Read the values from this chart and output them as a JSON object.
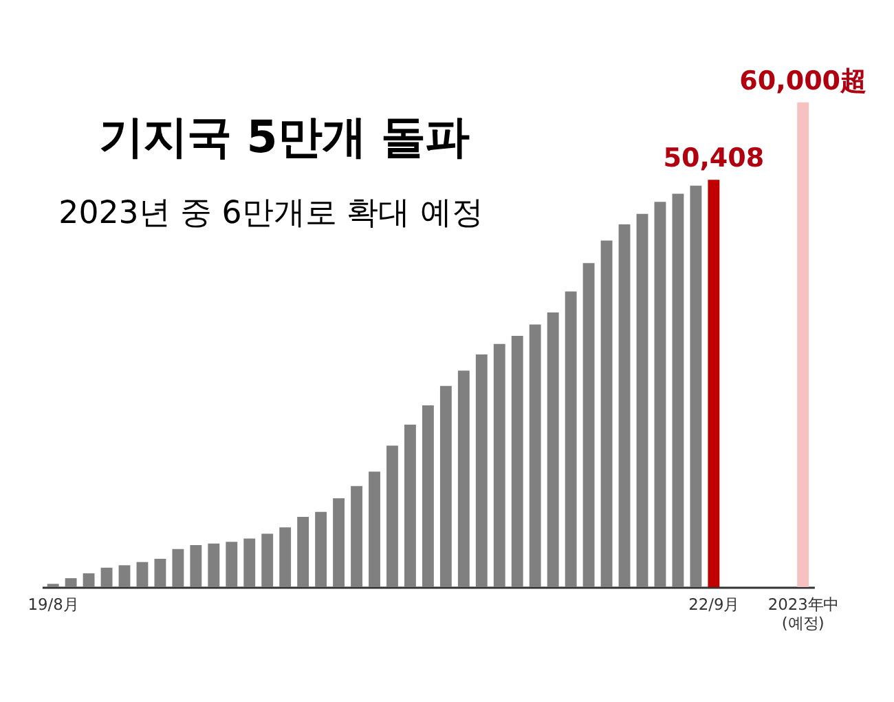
{
  "chart_data": {
    "type": "bar",
    "title": "기지국 5만개 돌파",
    "subtitle": "2023년 중 6만개로 확대 예정",
    "categories": [
      "19/8月",
      null,
      null,
      null,
      null,
      null,
      null,
      null,
      null,
      null,
      null,
      null,
      null,
      null,
      null,
      null,
      null,
      null,
      null,
      null,
      null,
      null,
      null,
      null,
      null,
      null,
      null,
      null,
      null,
      null,
      null,
      null,
      null,
      null,
      null,
      null,
      null,
      "22/9月",
      null,
      null,
      null,
      null,
      "2023年中\n(예정)"
    ],
    "values": [
      400,
      1100,
      1700,
      2400,
      2700,
      3100,
      3500,
      4700,
      5200,
      5400,
      5600,
      6000,
      6600,
      7400,
      8700,
      9300,
      11000,
      12500,
      14300,
      17500,
      20100,
      22500,
      24900,
      26800,
      28800,
      30100,
      31100,
      32500,
      34000,
      36600,
      40100,
      42900,
      44900,
      46200,
      47700,
      48700,
      49700,
      50408,
      null,
      null,
      null,
      null,
      60000
    ],
    "colors": [
      "#808080",
      "#808080",
      "#808080",
      "#808080",
      "#808080",
      "#808080",
      "#808080",
      "#808080",
      "#808080",
      "#808080",
      "#808080",
      "#808080",
      "#808080",
      "#808080",
      "#808080",
      "#808080",
      "#808080",
      "#808080",
      "#808080",
      "#808080",
      "#808080",
      "#808080",
      "#808080",
      "#808080",
      "#808080",
      "#808080",
      "#808080",
      "#808080",
      "#808080",
      "#808080",
      "#808080",
      "#808080",
      "#808080",
      "#808080",
      "#808080",
      "#808080",
      "#808080",
      "#c00000",
      "#808080",
      "#808080",
      "#808080",
      "#808080",
      "#f6c1c1"
    ],
    "value_labels": [
      null,
      null,
      null,
      null,
      null,
      null,
      null,
      null,
      null,
      null,
      null,
      null,
      null,
      null,
      null,
      null,
      null,
      null,
      null,
      null,
      null,
      null,
      null,
      null,
      null,
      null,
      null,
      null,
      null,
      null,
      null,
      null,
      null,
      null,
      null,
      null,
      null,
      "50,408",
      null,
      null,
      null,
      null,
      "60,000超"
    ],
    "tick_labels": "x",
    "grid": false
  }
}
